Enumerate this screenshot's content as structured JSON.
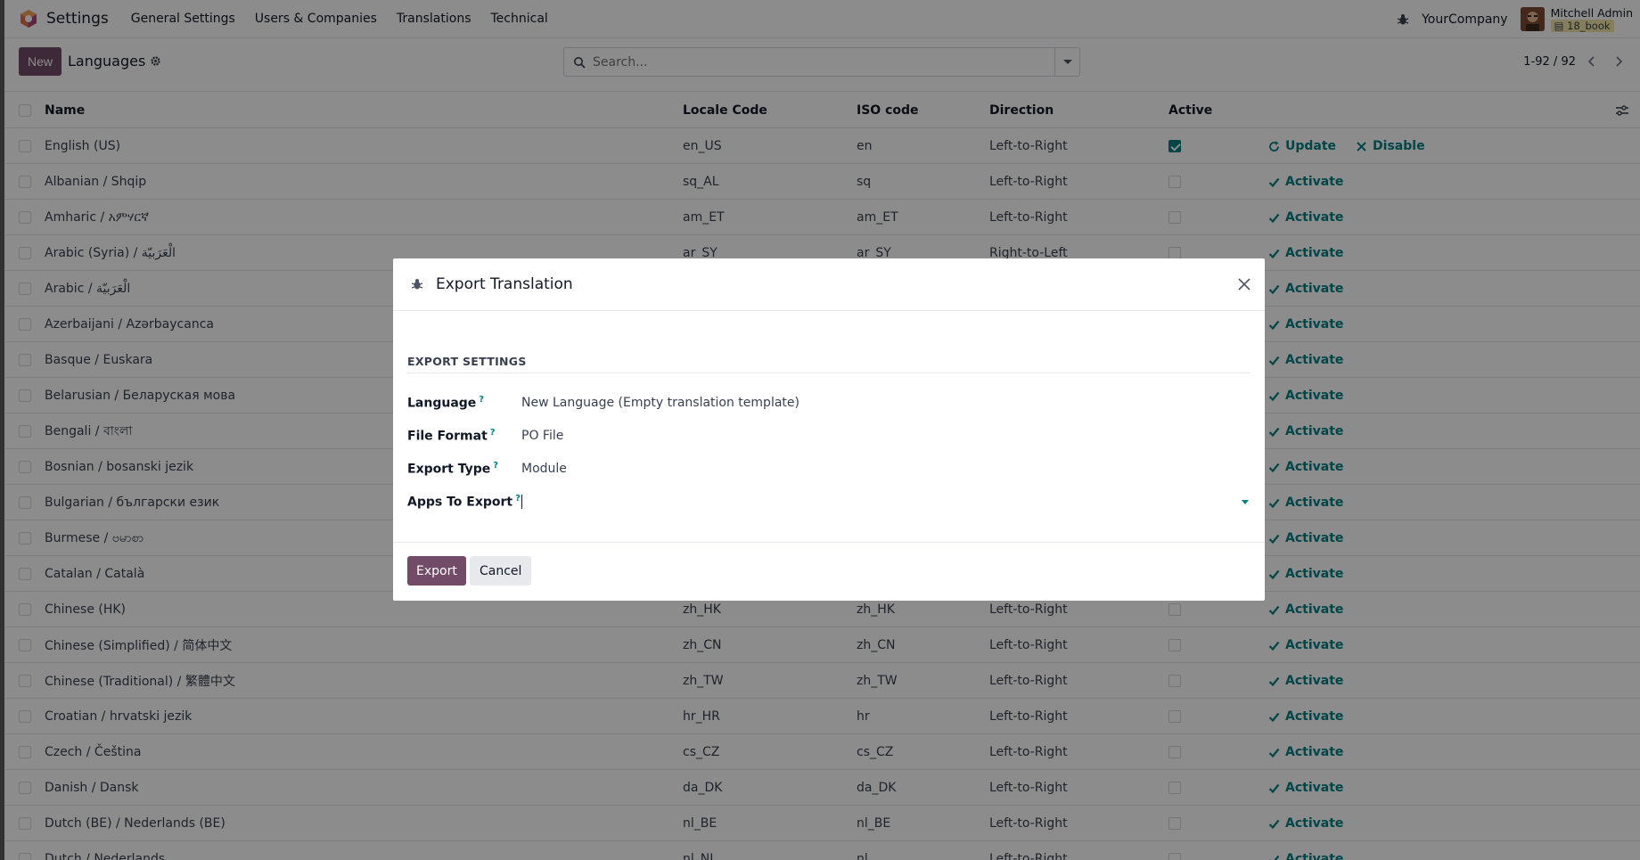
{
  "navbar": {
    "app_name": "Settings",
    "menu": [
      "General Settings",
      "Users & Companies",
      "Translations",
      "Technical"
    ],
    "company": "YourCompany",
    "user_name": "Mitchell Admin",
    "db_name": "18_book"
  },
  "control": {
    "new_label": "New",
    "title": "Languages",
    "search_placeholder": "Search...",
    "pager": "1-92 / 92"
  },
  "columns": {
    "name": "Name",
    "locale": "Locale Code",
    "iso": "ISO code",
    "direction": "Direction",
    "active": "Active"
  },
  "actions": {
    "update": "Update",
    "disable": "Disable",
    "activate": "Activate"
  },
  "rows": [
    {
      "name": "English (US)",
      "locale": "en_US",
      "iso": "en",
      "direction": "Left-to-Right",
      "active": true
    },
    {
      "name": "Albanian / Shqip",
      "locale": "sq_AL",
      "iso": "sq",
      "direction": "Left-to-Right",
      "active": false
    },
    {
      "name": "Amharic / አምሃርኛ",
      "locale": "am_ET",
      "iso": "am_ET",
      "direction": "Left-to-Right",
      "active": false
    },
    {
      "name": "Arabic (Syria) / الْعَرَبيّة",
      "locale": "ar_SY",
      "iso": "ar_SY",
      "direction": "Right-to-Left",
      "active": false
    },
    {
      "name": "Arabic / الْعَرَبيّة",
      "locale": "",
      "iso": "",
      "direction": "",
      "active": false
    },
    {
      "name": "Azerbaijani / Azərbaycanca",
      "locale": "",
      "iso": "",
      "direction": "",
      "active": false
    },
    {
      "name": "Basque / Euskara",
      "locale": "",
      "iso": "",
      "direction": "",
      "active": false
    },
    {
      "name": "Belarusian / Беларуская мова",
      "locale": "",
      "iso": "",
      "direction": "",
      "active": false
    },
    {
      "name": "Bengali / বাংলা",
      "locale": "",
      "iso": "",
      "direction": "",
      "active": false
    },
    {
      "name": "Bosnian / bosanski jezik",
      "locale": "",
      "iso": "",
      "direction": "",
      "active": false
    },
    {
      "name": "Bulgarian / български език",
      "locale": "",
      "iso": "",
      "direction": "",
      "active": false
    },
    {
      "name": "Burmese / ဗမာစာ",
      "locale": "",
      "iso": "",
      "direction": "",
      "active": false
    },
    {
      "name": "Catalan / Català",
      "locale": "",
      "iso": "",
      "direction": "",
      "active": false
    },
    {
      "name": "Chinese (HK)",
      "locale": "zh_HK",
      "iso": "zh_HK",
      "direction": "Left-to-Right",
      "active": false
    },
    {
      "name": "Chinese (Simplified) / 简体中文",
      "locale": "zh_CN",
      "iso": "zh_CN",
      "direction": "Left-to-Right",
      "active": false
    },
    {
      "name": "Chinese (Traditional) / 繁體中文",
      "locale": "zh_TW",
      "iso": "zh_TW",
      "direction": "Left-to-Right",
      "active": false
    },
    {
      "name": "Croatian / hrvatski jezik",
      "locale": "hr_HR",
      "iso": "hr",
      "direction": "Left-to-Right",
      "active": false
    },
    {
      "name": "Czech / Čeština",
      "locale": "cs_CZ",
      "iso": "cs_CZ",
      "direction": "Left-to-Right",
      "active": false
    },
    {
      "name": "Danish / Dansk",
      "locale": "da_DK",
      "iso": "da_DK",
      "direction": "Left-to-Right",
      "active": false
    },
    {
      "name": "Dutch (BE) / Nederlands (BE)",
      "locale": "nl_BE",
      "iso": "nl_BE",
      "direction": "Left-to-Right",
      "active": false
    },
    {
      "name": "Dutch / Nederlands",
      "locale": "nl_NL",
      "iso": "nl",
      "direction": "Left-to-Right",
      "active": false
    }
  ],
  "dialog": {
    "title": "Export Translation",
    "section": "EXPORT SETTINGS",
    "fields": [
      {
        "label": "Language",
        "value": "New Language (Empty translation template)"
      },
      {
        "label": "File Format",
        "value": "PO File"
      },
      {
        "label": "Export Type",
        "value": "Module"
      },
      {
        "label": "Apps To Export",
        "value": ""
      }
    ],
    "help_mark": "?",
    "export_label": "Export",
    "cancel_label": "Cancel"
  },
  "colors": {
    "primary": "#714b67",
    "link": "#017e84"
  }
}
